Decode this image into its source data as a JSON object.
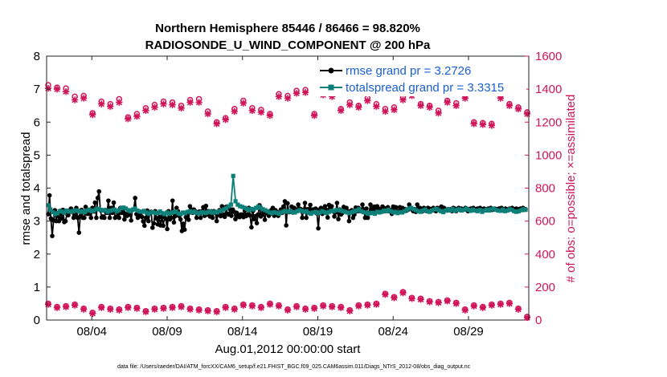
{
  "chart_data": {
    "type": "line",
    "title": "Northern Hemisphere 85446 / 86466 = 98.820%",
    "subtitle": "RADIOSONDE_U_WIND_COMPONENT @ 200 hPa",
    "xlabel": "Aug.01,2012 00:00:00 start",
    "ylabel": "rmse and totalspread",
    "y2label": "# of obs: o=possible; ×=assimilated",
    "footnote": "data file: /Users/raeder/DAI/ATM_forcXX/CAM6_setup/f.e21.FHIST_BGC.f09_025.CAM6assim.011/Diags_NTrS_2012-08/obs_diag_output.nc",
    "xlim": [
      1,
      33
    ],
    "ylim": [
      0,
      8
    ],
    "y2lim": [
      0,
      1600
    ],
    "x_ticks": [
      {
        "value": 4,
        "label": "08/04"
      },
      {
        "value": 9,
        "label": "08/09"
      },
      {
        "value": 14,
        "label": "08/14"
      },
      {
        "value": 19,
        "label": "08/19"
      },
      {
        "value": 24,
        "label": "08/24"
      },
      {
        "value": 29,
        "label": "08/29"
      }
    ],
    "y_ticks": [
      "0",
      "1",
      "2",
      "3",
      "4",
      "5",
      "6",
      "7",
      "8"
    ],
    "y2_ticks": [
      "0",
      "200",
      "400",
      "600",
      "800",
      "1000",
      "1200",
      "1400",
      "1600"
    ],
    "legend": {
      "placement": "top-right",
      "entries": [
        "rmse grand pr = 3.2726",
        "totalspread grand pr = 3.3315"
      ]
    },
    "colors": {
      "rmse": "#000000",
      "spread": "#0c8079",
      "obs": "#d0145a",
      "legend_text": "#1a5fd0"
    },
    "x_start": 1.25,
    "x_step": 0.25,
    "series": [
      {
        "name": "rmse",
        "axis": "left",
        "values": [
          3.21,
          3.78,
          3.08,
          2.55,
          3.02,
          3.33,
          3.0,
          3.24,
          3.0,
          3.31,
          3.08,
          3.34,
          2.97,
          3.0,
          3.22,
          3.18,
          3.27,
          3.38,
          3.28,
          3.1,
          3.17,
          3.4,
          3.1,
          2.65,
          3.15,
          3.34,
          3.1,
          3.1,
          3.43,
          3.22,
          3.22,
          3.25,
          3.1,
          3.4,
          3.29,
          3.56,
          3.1,
          3.7,
          3.9,
          3.33,
          3.11,
          3.14,
          3.1,
          3.29,
          3.25,
          3.62,
          3.1,
          3.4,
          3.25,
          3.56,
          3.1,
          3.13,
          3.26,
          3.1,
          3.4,
          3.25,
          3.3,
          3.05,
          3.22,
          3.16,
          3.19,
          3.28,
          3.02,
          3.34,
          3.36,
          3.7,
          3.21,
          3.1,
          3.22,
          3.18,
          3.13,
          2.99,
          2.86,
          3.1,
          3.32,
          3.0,
          3.26,
          3.28,
          2.8,
          2.93,
          3.3,
          3.08,
          2.9,
          3.12,
          2.87,
          3.15,
          2.86,
          3.12,
          3.07,
          2.76,
          3.3,
          3.05,
          3.1,
          3.62,
          2.96,
          3.15,
          3.4,
          3.3,
          3.15,
          3.05,
          2.7,
          2.92,
          2.74,
          3.12,
          3.2,
          3.04,
          3.45,
          3.35,
          3.25,
          3.35,
          3.3,
          3.1,
          3.24,
          3.29,
          3.1,
          3.3,
          3.42,
          3.16,
          3.46,
          3.2,
          3.3,
          3.14,
          3.3,
          3.1,
          3.3,
          3.25,
          3.0,
          3.2,
          3.33,
          3.15,
          3.45,
          3.19,
          3.13,
          3.43,
          3.22,
          3.2,
          3.36,
          3.16,
          3.35,
          3.28,
          3.06,
          3.25,
          3.15,
          3.12,
          3.2,
          3.2,
          3.12,
          3.32,
          3.15,
          3.2,
          3.4,
          3.17,
          2.81,
          3.3,
          3.06,
          3.15,
          2.94,
          3.2,
          3.48,
          3.14,
          3.19,
          3.28,
          3.04,
          3.25,
          3.26,
          3.16,
          3.22,
          3.34,
          3.4,
          3.16,
          3.33,
          3.28,
          3.16,
          3.23,
          3.35,
          3.25,
          3.44,
          3.6,
          2.87,
          3.54,
          3.27,
          3.29,
          3.44,
          3.26,
          3.4,
          3.3,
          3.34,
          3.5,
          3.38,
          3.36,
          3.1,
          3.34,
          3.55,
          3.1,
          3.36,
          3.35,
          3.49,
          3.25,
          3.35,
          3.3,
          3.38,
          3.23,
          2.78,
          3.35,
          3.4,
          3.22,
          3.36,
          3.45,
          3.34,
          3.11,
          3.49,
          3.32,
          3.45,
          3.3,
          3.14,
          3.26,
          3.55,
          3.06,
          3.35,
          3.2,
          3.25,
          3.43,
          3.31,
          3.4,
          3.3,
          3.0,
          3.3,
          3.33,
          3.1,
          3.2,
          3.41,
          3.3,
          3.4,
          3.3,
          3.3,
          3.5,
          3.35,
          3.1,
          3.38,
          3.1,
          3.25,
          3.5,
          3.36,
          3.4,
          3.44,
          3.3,
          3.45,
          3.38,
          3.3,
          3.33,
          3.44,
          3.4,
          3.3,
          3.35,
          3.42,
          3.3,
          3.34,
          3.22,
          3.44,
          3.3,
          3.42,
          3.3,
          3.3,
          3.42,
          3.34,
          3.4,
          3.3,
          3.36,
          3.32,
          3.34,
          3.5,
          3.4,
          3.35,
          3.3,
          3.36,
          3.28,
          3.5,
          3.34,
          3.4,
          3.33,
          3.3,
          3.4,
          3.35,
          3.3,
          3.4,
          3.38,
          3.3,
          3.36,
          3.4,
          3.34,
          3.3,
          3.4,
          3.34,
          3.35,
          3.44,
          3.3,
          3.4,
          3.36,
          3.32,
          3.36,
          3.34,
          3.36,
          3.3,
          3.4,
          3.38,
          3.3,
          3.36,
          3.4,
          3.34,
          3.38,
          3.34,
          3.36,
          3.4,
          3.34,
          3.3,
          3.36,
          3.38,
          3.34,
          3.4,
          3.36,
          3.34,
          3.38,
          3.36,
          3.4,
          3.34,
          3.36,
          3.38,
          3.36,
          3.34,
          3.38,
          3.36,
          3.4,
          3.34,
          3.36,
          3.38,
          3.36,
          3.34,
          3.38,
          3.36,
          3.4,
          3.34,
          3.36,
          3.38,
          3.36,
          3.34,
          3.38,
          3.36,
          3.4,
          3.34,
          3.36,
          3.38,
          3.36,
          3.34,
          3.38,
          3.36,
          3.4,
          3.34,
          3.36
        ]
      },
      {
        "name": "totalspread",
        "axis": "left",
        "values": [
          3.48,
          3.35,
          3.27,
          3.21,
          3.24,
          3.3,
          3.29,
          3.25,
          3.32,
          3.29,
          3.28,
          3.31,
          3.33,
          3.31,
          3.28,
          3.3,
          3.27,
          3.32,
          3.35,
          3.3,
          3.32,
          3.36,
          3.37,
          3.34,
          3.32,
          3.34,
          3.28,
          3.31,
          3.33,
          3.35,
          3.3,
          3.33,
          3.39,
          3.41,
          3.38,
          3.33,
          3.3,
          3.35,
          3.38,
          3.32,
          3.29,
          3.28,
          3.31,
          3.26,
          3.22,
          3.26,
          3.27,
          3.24,
          3.25,
          3.29,
          3.24,
          3.21,
          3.26,
          3.22,
          3.25,
          3.27,
          3.29,
          3.23,
          3.21,
          3.26,
          3.24,
          3.28,
          3.3,
          3.26,
          3.29,
          3.25,
          3.23,
          3.27,
          3.26,
          3.24,
          3.27,
          3.29,
          3.25,
          3.28,
          3.26,
          3.3,
          3.32,
          3.36,
          3.39,
          3.45,
          3.5,
          4.37,
          3.6,
          3.5,
          3.45,
          3.43,
          3.4,
          3.37,
          3.33,
          3.37,
          3.35,
          3.4,
          3.44,
          3.4,
          3.36,
          3.33,
          3.3,
          3.26,
          3.24,
          3.27,
          3.25,
          3.22,
          3.26,
          3.29,
          3.3,
          3.28,
          3.31,
          3.27,
          3.26,
          3.3,
          3.33,
          3.31,
          3.28,
          3.3,
          3.25,
          3.22,
          3.26,
          3.28,
          3.24,
          3.26,
          3.3,
          3.27,
          3.24,
          3.28,
          3.31,
          3.3,
          3.33,
          3.34,
          3.32,
          3.3,
          3.28,
          3.26,
          3.24,
          3.27,
          3.29,
          3.32,
          3.36,
          3.3,
          3.27,
          3.26,
          3.22,
          3.24,
          3.25,
          3.22,
          3.28,
          3.26,
          3.28,
          3.32,
          3.3,
          3.34,
          3.3,
          3.26,
          3.28,
          3.24,
          3.27,
          3.26,
          3.3,
          3.34,
          3.38,
          3.4,
          3.36,
          3.33,
          3.3,
          3.28,
          3.32,
          3.35,
          3.3,
          3.28,
          3.32,
          3.35,
          3.37,
          3.33,
          3.3,
          3.27,
          3.32,
          3.35,
          3.32,
          3.37,
          3.31,
          3.34,
          3.36,
          3.32,
          3.34,
          3.38,
          3.34,
          3.31,
          3.35,
          3.32,
          3.3,
          3.34,
          3.28,
          3.32,
          3.35,
          3.32,
          3.36,
          3.38,
          3.34,
          3.32,
          3.31,
          3.35,
          3.3,
          3.32,
          3.36,
          3.34,
          3.3,
          3.28,
          3.3,
          3.33,
          3.36,
          3.34
        ]
      },
      {
        "name": "obs_possible",
        "axis": "right",
        "values": [
          1425,
          1410,
          1405,
          1355,
          1360,
          1255,
          1325,
          1310,
          1340,
          1230,
          1250,
          1285,
          1305,
          1325,
          1320,
          1300,
          1335,
          1340,
          1265,
          1200,
          1225,
          1280,
          1330,
          1285,
          1275,
          1250,
          1370,
          1360,
          1390,
          1395,
          1250,
          1380,
          1370,
          1280,
          1320,
          1300,
          1345,
          1310,
          1280,
          1290,
          1350,
          1375,
          1310,
          1300,
          1270,
          1330,
          1315,
          1360,
          1200,
          1195,
          1190,
          1360,
          1310,
          1290,
          1260
        ]
      },
      {
        "name": "obs_assimilated",
        "axis": "right",
        "values": [
          1405,
          1400,
          1385,
          1335,
          1345,
          1245,
          1310,
          1295,
          1320,
          1220,
          1235,
          1270,
          1290,
          1310,
          1305,
          1285,
          1320,
          1320,
          1250,
          1190,
          1215,
          1265,
          1315,
          1270,
          1260,
          1240,
          1355,
          1345,
          1375,
          1380,
          1240,
          1365,
          1355,
          1270,
          1305,
          1290,
          1330,
          1295,
          1265,
          1275,
          1335,
          1360,
          1300,
          1290,
          1255,
          1320,
          1300,
          1345,
          1190,
          1185,
          1180,
          1345,
          1300,
          1280,
          1250
        ]
      },
      {
        "name": "obs_bottom_possible",
        "axis": "right",
        "values": [
          100,
          80,
          85,
          95,
          70,
          45,
          80,
          70,
          65,
          80,
          75,
          55,
          70,
          75,
          80,
          85,
          70,
          65,
          60,
          55,
          80,
          70,
          95,
          90,
          80,
          100,
          90,
          65,
          85,
          70,
          75,
          90,
          85,
          80,
          60,
          90,
          95,
          100,
          160,
          140,
          170,
          135,
          130,
          115,
          110,
          120,
          105,
          65,
          90,
          80,
          95,
          100,
          105,
          70,
          20
        ]
      },
      {
        "name": "obs_bottom_assimilated",
        "axis": "right",
        "values": [
          95,
          75,
          80,
          90,
          65,
          40,
          75,
          65,
          60,
          75,
          70,
          50,
          65,
          70,
          75,
          80,
          65,
          60,
          55,
          50,
          75,
          65,
          90,
          85,
          75,
          95,
          85,
          60,
          80,
          65,
          70,
          85,
          80,
          75,
          55,
          85,
          90,
          95,
          155,
          135,
          165,
          130,
          125,
          110,
          105,
          115,
          100,
          60,
          85,
          75,
          90,
          95,
          100,
          65,
          15
        ]
      }
    ]
  }
}
